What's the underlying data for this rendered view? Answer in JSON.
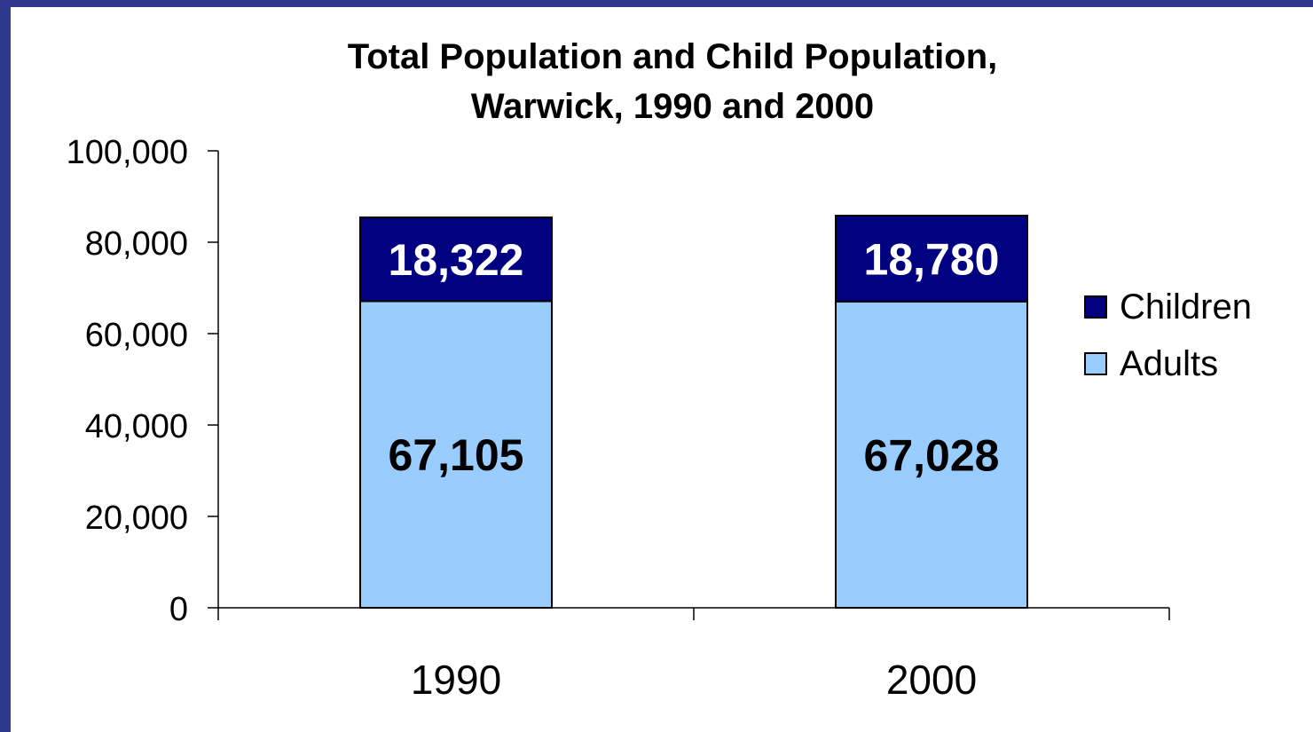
{
  "chart_data": {
    "type": "bar",
    "stacked": true,
    "title": "Total Population and Child Population,",
    "subtitle": "Warwick, 1990 and 2000",
    "categories": [
      "1990",
      "2000"
    ],
    "series": [
      {
        "name": "Adults",
        "values": [
          67105,
          67028
        ],
        "labels": [
          "67,105",
          "67,028"
        ],
        "color": "#99ccff",
        "label_color": "#000000"
      },
      {
        "name": "Children",
        "values": [
          18322,
          18780
        ],
        "labels": [
          "18,322",
          "18,780"
        ],
        "color": "#000080",
        "label_color": "#ffffff"
      }
    ],
    "ylim": [
      0,
      100000
    ],
    "yticks": [
      0,
      20000,
      40000,
      60000,
      80000,
      100000
    ],
    "ytick_labels": [
      "0",
      "20,000",
      "40,000",
      "60,000",
      "80,000",
      "100,000"
    ],
    "grid": false,
    "legend_position": "right"
  },
  "colors": {
    "background_border": "#2f3a8f",
    "plot_background": "#ffffff"
  }
}
